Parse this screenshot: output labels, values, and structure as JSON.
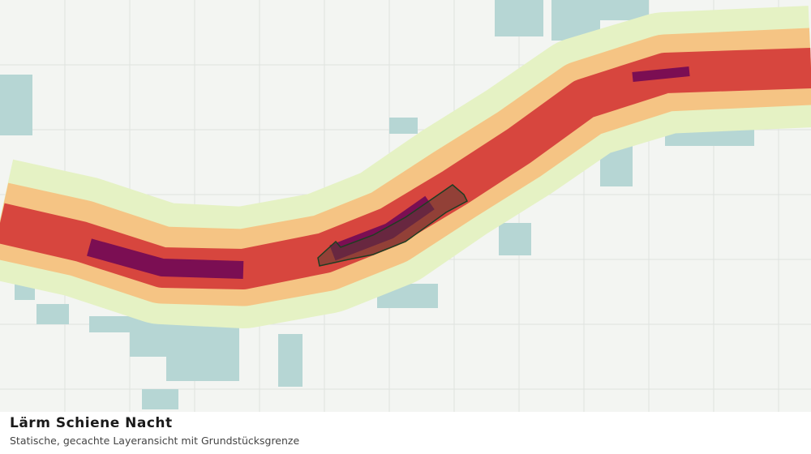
{
  "map": {
    "title": "Lärm Schiene Nacht",
    "subtitle": "Statische, gecachte Layeransicht mit Grundstücksgrenze"
  }
}
